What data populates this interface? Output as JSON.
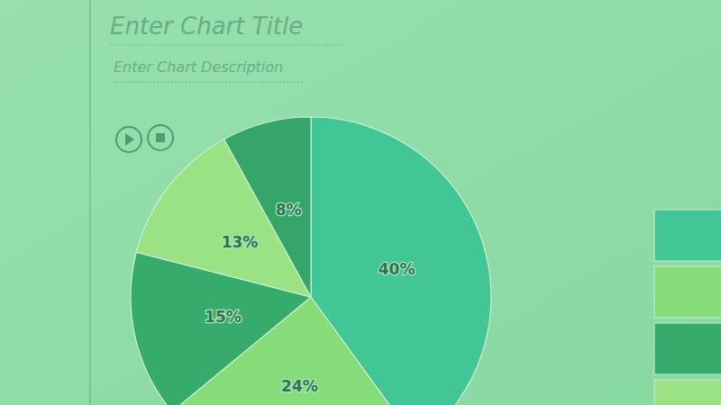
{
  "chart_data": {
    "type": "pie",
    "title": "Enter Chart Title",
    "subtitle": "Enter Chart Description",
    "values": [
      40,
      24,
      15,
      13,
      8
    ],
    "value_labels": [
      "40%",
      "24%",
      "15%",
      "13%",
      "8%"
    ],
    "colors": [
      "#43c695",
      "#86dc78",
      "#36ab6c",
      "#9ae283",
      "#36a56a"
    ],
    "data_labels": true
  }
}
